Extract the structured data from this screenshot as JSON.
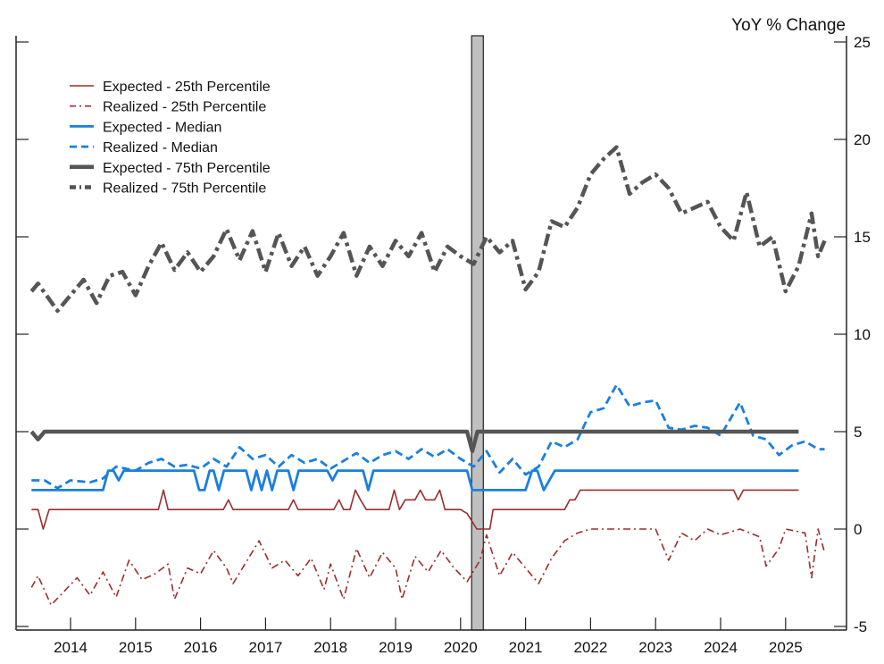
{
  "chart_data": {
    "type": "line",
    "ylabel": "YoY % Change",
    "ylim": [
      -5,
      25
    ],
    "xlim": [
      2013.16,
      2025.94
    ],
    "y_ticks": [
      -5,
      0,
      5,
      10,
      15,
      20,
      25
    ],
    "x_ticks": [
      "2014",
      "2015",
      "2016",
      "2017",
      "2018",
      "2019",
      "2020",
      "2021",
      "2022",
      "2023",
      "2024",
      "2025"
    ],
    "grid": false,
    "legend_position": "top-left",
    "shaded_period": {
      "start": 2020.17,
      "end": 2020.35,
      "color": "#c0c0c0"
    },
    "series": [
      {
        "name": "Expected - 25th Percentile",
        "color": "#9b2d2d",
        "style": "solid",
        "width": "thin",
        "points": [
          [
            2013.4,
            1
          ],
          [
            2013.5,
            1
          ],
          [
            2013.58,
            0
          ],
          [
            2013.67,
            1
          ],
          [
            2015.35,
            1
          ],
          [
            2015.43,
            2
          ],
          [
            2015.5,
            1
          ],
          [
            2016.35,
            1
          ],
          [
            2016.43,
            1.5
          ],
          [
            2016.5,
            1
          ],
          [
            2017.35,
            1
          ],
          [
            2017.43,
            1.5
          ],
          [
            2017.5,
            1
          ],
          [
            2018.05,
            1
          ],
          [
            2018.13,
            1.5
          ],
          [
            2018.2,
            1
          ],
          [
            2018.3,
            1
          ],
          [
            2018.38,
            2
          ],
          [
            2018.46,
            1.5
          ],
          [
            2018.55,
            1
          ],
          [
            2018.9,
            1
          ],
          [
            2018.98,
            2
          ],
          [
            2019.06,
            1
          ],
          [
            2019.15,
            1.5
          ],
          [
            2019.3,
            1.5
          ],
          [
            2019.38,
            2
          ],
          [
            2019.46,
            1.5
          ],
          [
            2019.6,
            1.5
          ],
          [
            2019.68,
            2
          ],
          [
            2019.76,
            1
          ],
          [
            2020.0,
            1
          ],
          [
            2020.1,
            0.8
          ],
          [
            2020.25,
            0
          ],
          [
            2020.45,
            0
          ],
          [
            2020.5,
            1
          ],
          [
            2021.6,
            1
          ],
          [
            2021.68,
            1.5
          ],
          [
            2021.76,
            1.5
          ],
          [
            2021.84,
            2
          ],
          [
            2024.2,
            2
          ],
          [
            2024.27,
            1.5
          ],
          [
            2024.35,
            2
          ],
          [
            2025.2,
            2
          ]
        ]
      },
      {
        "name": "Realized - 25th Percentile",
        "color": "#9b2d2d",
        "style": "dashdot",
        "width": "thin",
        "points": [
          [
            2013.4,
            -3
          ],
          [
            2013.5,
            -2.4
          ],
          [
            2013.7,
            -3.9
          ],
          [
            2013.9,
            -3.2
          ],
          [
            2014.1,
            -2.5
          ],
          [
            2014.3,
            -3.4
          ],
          [
            2014.5,
            -2.2
          ],
          [
            2014.7,
            -3.5
          ],
          [
            2014.9,
            -1.6
          ],
          [
            2015.1,
            -2.6
          ],
          [
            2015.3,
            -2.3
          ],
          [
            2015.5,
            -1.8
          ],
          [
            2015.6,
            -3.6
          ],
          [
            2015.8,
            -2
          ],
          [
            2016.0,
            -2.3
          ],
          [
            2016.2,
            -1.1
          ],
          [
            2016.4,
            -2
          ],
          [
            2016.5,
            -2.8
          ],
          [
            2016.7,
            -1.7
          ],
          [
            2016.9,
            -0.6
          ],
          [
            2017.1,
            -2
          ],
          [
            2017.3,
            -1.6
          ],
          [
            2017.5,
            -2.4
          ],
          [
            2017.7,
            -1.5
          ],
          [
            2017.9,
            -3.1
          ],
          [
            2018.0,
            -1.8
          ],
          [
            2018.2,
            -3.6
          ],
          [
            2018.4,
            -1
          ],
          [
            2018.6,
            -2.5
          ],
          [
            2018.8,
            -1.2
          ],
          [
            2019.0,
            -2
          ],
          [
            2019.1,
            -3.6
          ],
          [
            2019.3,
            -1.4
          ],
          [
            2019.5,
            -2.2
          ],
          [
            2019.7,
            -1.1
          ],
          [
            2019.9,
            -2
          ],
          [
            2020.1,
            -2.7
          ],
          [
            2020.3,
            -1.6
          ],
          [
            2020.4,
            -0.3
          ],
          [
            2020.6,
            -2.4
          ],
          [
            2020.8,
            -1.2
          ],
          [
            2021.0,
            -2
          ],
          [
            2021.2,
            -2.8
          ],
          [
            2021.4,
            -1.5
          ],
          [
            2021.6,
            -0.6
          ],
          [
            2021.8,
            -0.2
          ],
          [
            2022.0,
            0
          ],
          [
            2022.4,
            0
          ],
          [
            2023.0,
            0
          ],
          [
            2023.2,
            -1.6
          ],
          [
            2023.4,
            -0.2
          ],
          [
            2023.6,
            -0.6
          ],
          [
            2023.8,
            0
          ],
          [
            2024.0,
            -0.3
          ],
          [
            2024.3,
            0
          ],
          [
            2024.6,
            -0.4
          ],
          [
            2024.7,
            -1.9
          ],
          [
            2024.9,
            -1
          ],
          [
            2025.0,
            0
          ],
          [
            2025.3,
            -0.2
          ],
          [
            2025.4,
            -2.5
          ],
          [
            2025.5,
            0
          ],
          [
            2025.6,
            -1.2
          ]
        ]
      },
      {
        "name": "Expected - Median",
        "color": "#1a7fe0",
        "style": "solid",
        "width": "medium",
        "points": [
          [
            2013.4,
            2
          ],
          [
            2014.5,
            2
          ],
          [
            2014.58,
            3
          ],
          [
            2014.66,
            3
          ],
          [
            2014.74,
            2.5
          ],
          [
            2014.82,
            3
          ],
          [
            2015.9,
            3
          ],
          [
            2015.98,
            2
          ],
          [
            2016.06,
            2
          ],
          [
            2016.14,
            3
          ],
          [
            2016.2,
            3
          ],
          [
            2016.28,
            2
          ],
          [
            2016.36,
            3
          ],
          [
            2016.7,
            3
          ],
          [
            2016.78,
            2
          ],
          [
            2016.86,
            3
          ],
          [
            2016.94,
            2
          ],
          [
            2017.02,
            3
          ],
          [
            2017.1,
            2
          ],
          [
            2017.18,
            3
          ],
          [
            2017.35,
            3
          ],
          [
            2017.43,
            2
          ],
          [
            2017.51,
            3
          ],
          [
            2017.95,
            3
          ],
          [
            2018.03,
            2.5
          ],
          [
            2018.11,
            3
          ],
          [
            2018.5,
            3
          ],
          [
            2018.58,
            2
          ],
          [
            2018.66,
            3
          ],
          [
            2020.1,
            3
          ],
          [
            2020.18,
            2
          ],
          [
            2021.0,
            2
          ],
          [
            2021.1,
            3
          ],
          [
            2021.18,
            3
          ],
          [
            2021.28,
            2
          ],
          [
            2021.45,
            3
          ],
          [
            2025.2,
            3
          ]
        ]
      },
      {
        "name": "Realized - Median",
        "color": "#1a7fe0",
        "style": "dashed",
        "width": "medium",
        "points": [
          [
            2013.4,
            2.5
          ],
          [
            2013.6,
            2.5
          ],
          [
            2013.8,
            2.1
          ],
          [
            2014.0,
            2.5
          ],
          [
            2014.3,
            2.4
          ],
          [
            2014.5,
            2.6
          ],
          [
            2014.7,
            3.2
          ],
          [
            2015.0,
            3
          ],
          [
            2015.2,
            3.4
          ],
          [
            2015.4,
            3.6
          ],
          [
            2015.6,
            3.2
          ],
          [
            2015.8,
            3.3
          ],
          [
            2016.0,
            3.1
          ],
          [
            2016.2,
            3.6
          ],
          [
            2016.4,
            3.2
          ],
          [
            2016.6,
            4.2
          ],
          [
            2016.8,
            3.6
          ],
          [
            2017.0,
            3.8
          ],
          [
            2017.2,
            3.2
          ],
          [
            2017.4,
            3.8
          ],
          [
            2017.6,
            3.4
          ],
          [
            2017.8,
            3.6
          ],
          [
            2018.0,
            3.1
          ],
          [
            2018.2,
            3.5
          ],
          [
            2018.4,
            3.9
          ],
          [
            2018.6,
            3.4
          ],
          [
            2018.8,
            3.8
          ],
          [
            2019.0,
            4
          ],
          [
            2019.2,
            3.6
          ],
          [
            2019.4,
            4.1
          ],
          [
            2019.6,
            3.7
          ],
          [
            2019.8,
            4.1
          ],
          [
            2020.0,
            3.6
          ],
          [
            2020.2,
            3.2
          ],
          [
            2020.4,
            4
          ],
          [
            2020.6,
            2.9
          ],
          [
            2020.8,
            3.6
          ],
          [
            2021.0,
            2.8
          ],
          [
            2021.2,
            3.2
          ],
          [
            2021.4,
            4.5
          ],
          [
            2021.6,
            4.2
          ],
          [
            2021.8,
            4.6
          ],
          [
            2022.0,
            6
          ],
          [
            2022.2,
            6.2
          ],
          [
            2022.4,
            7.4
          ],
          [
            2022.6,
            6.3
          ],
          [
            2022.8,
            6.5
          ],
          [
            2023.0,
            6.6
          ],
          [
            2023.2,
            5.2
          ],
          [
            2023.4,
            5.1
          ],
          [
            2023.6,
            5.3
          ],
          [
            2023.8,
            5.2
          ],
          [
            2024.0,
            4.8
          ],
          [
            2024.3,
            6.5
          ],
          [
            2024.5,
            4.8
          ],
          [
            2024.7,
            4.6
          ],
          [
            2024.9,
            3.8
          ],
          [
            2025.1,
            4.3
          ],
          [
            2025.3,
            4.5
          ],
          [
            2025.5,
            4.1
          ],
          [
            2025.6,
            4.1
          ]
        ]
      },
      {
        "name": "Expected - 75th Percentile",
        "color": "#555555",
        "style": "solid",
        "width": "thick",
        "points": [
          [
            2013.4,
            5
          ],
          [
            2013.5,
            4.6
          ],
          [
            2013.6,
            5
          ],
          [
            2020.1,
            5
          ],
          [
            2020.18,
            4
          ],
          [
            2020.26,
            5
          ],
          [
            2025.2,
            5
          ]
        ]
      },
      {
        "name": "Realized - 75th Percentile",
        "color": "#555555",
        "style": "dotdash",
        "width": "thick",
        "points": [
          [
            2013.4,
            12.2
          ],
          [
            2013.5,
            12.6
          ],
          [
            2013.8,
            11.2
          ],
          [
            2014.0,
            12
          ],
          [
            2014.2,
            12.8
          ],
          [
            2014.4,
            11.6
          ],
          [
            2014.6,
            13
          ],
          [
            2014.8,
            13.2
          ],
          [
            2015.0,
            12
          ],
          [
            2015.2,
            13.5
          ],
          [
            2015.4,
            14.7
          ],
          [
            2015.6,
            13.3
          ],
          [
            2015.8,
            14.2
          ],
          [
            2016.0,
            13.2
          ],
          [
            2016.2,
            14
          ],
          [
            2016.4,
            15.4
          ],
          [
            2016.6,
            13.8
          ],
          [
            2016.8,
            15.3
          ],
          [
            2017.0,
            13.2
          ],
          [
            2017.2,
            15.2
          ],
          [
            2017.4,
            13.5
          ],
          [
            2017.6,
            14.5
          ],
          [
            2017.8,
            13
          ],
          [
            2018.0,
            14
          ],
          [
            2018.2,
            15.2
          ],
          [
            2018.4,
            13
          ],
          [
            2018.6,
            14.5
          ],
          [
            2018.8,
            13.5
          ],
          [
            2019.0,
            14.8
          ],
          [
            2019.2,
            14
          ],
          [
            2019.4,
            15.2
          ],
          [
            2019.6,
            13.2
          ],
          [
            2019.8,
            14.5
          ],
          [
            2020.0,
            14
          ],
          [
            2020.2,
            13.6
          ],
          [
            2020.4,
            15
          ],
          [
            2020.6,
            14.2
          ],
          [
            2020.8,
            14.8
          ],
          [
            2021.0,
            12.3
          ],
          [
            2021.2,
            13.2
          ],
          [
            2021.4,
            15.8
          ],
          [
            2021.6,
            15.5
          ],
          [
            2021.8,
            16.5
          ],
          [
            2022.0,
            18.2
          ],
          [
            2022.2,
            19
          ],
          [
            2022.4,
            19.6
          ],
          [
            2022.6,
            17.2
          ],
          [
            2022.8,
            17.8
          ],
          [
            2023.0,
            18.2
          ],
          [
            2023.2,
            17.5
          ],
          [
            2023.4,
            16.2
          ],
          [
            2023.6,
            16.5
          ],
          [
            2023.8,
            16.8
          ],
          [
            2024.0,
            15.5
          ],
          [
            2024.2,
            14.8
          ],
          [
            2024.4,
            17.3
          ],
          [
            2024.6,
            14.5
          ],
          [
            2024.8,
            15
          ],
          [
            2025.0,
            12.2
          ],
          [
            2025.2,
            13.5
          ],
          [
            2025.4,
            16.2
          ],
          [
            2025.5,
            14
          ],
          [
            2025.6,
            14.8
          ]
        ]
      }
    ]
  }
}
